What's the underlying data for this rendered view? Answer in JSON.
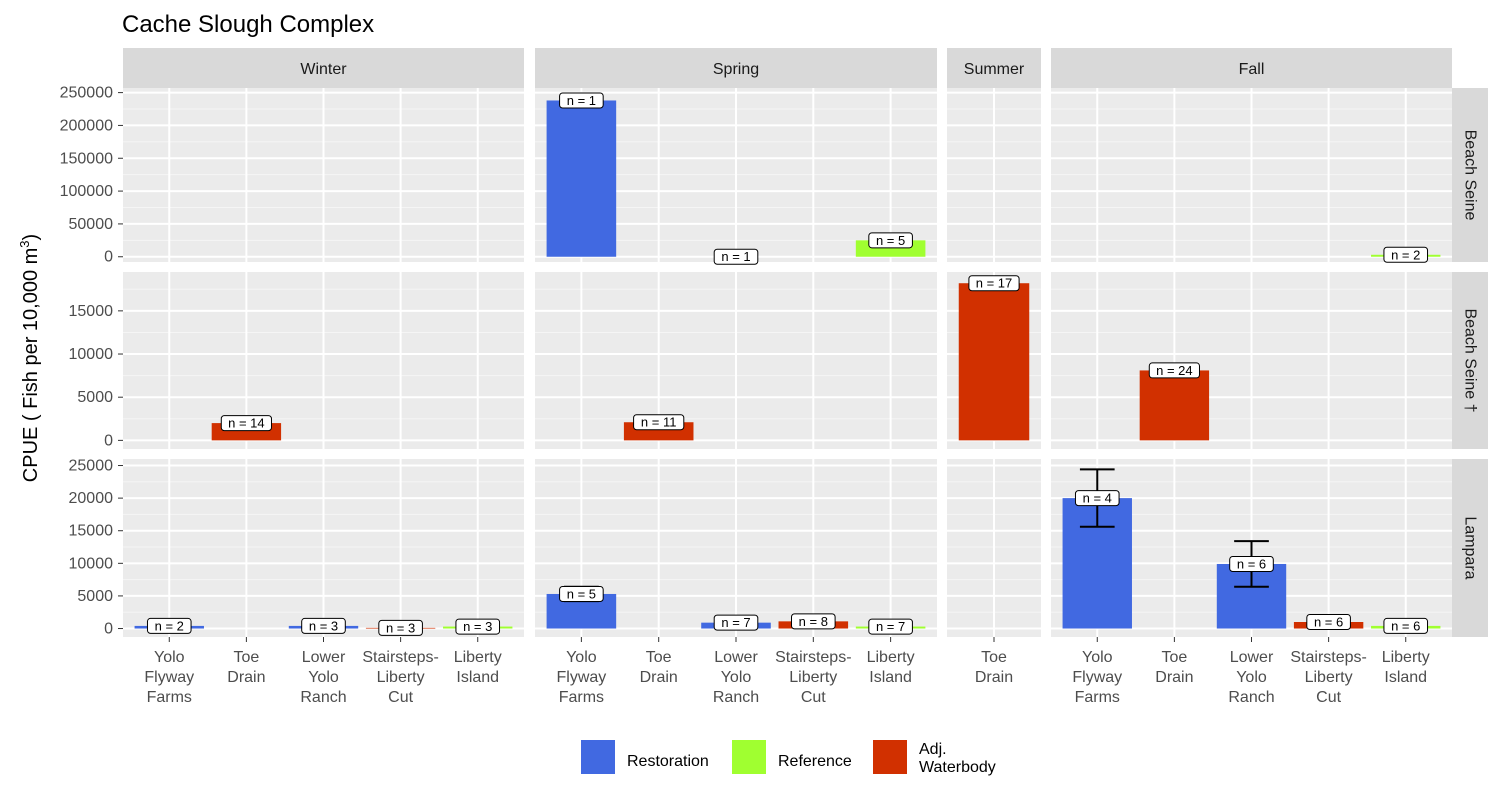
{
  "chart_data": {
    "type": "bar",
    "title": "Cache Slough Complex",
    "ylabel": "CPUE ( Fish per 10,000 m",
    "ylabel_superscript": "3",
    "ylabel_close": ")",
    "columns": [
      {
        "name": "Winter",
        "categories": [
          "Yolo Flyway Farms",
          "Toe Drain",
          "Lower Yolo Ranch",
          "Stairsteps-Liberty Cut",
          "Liberty Island"
        ]
      },
      {
        "name": "Spring",
        "categories": [
          "Yolo Flyway Farms",
          "Toe Drain",
          "Lower Yolo Ranch",
          "Stairsteps-Liberty Cut",
          "Liberty Island"
        ]
      },
      {
        "name": "Summer",
        "categories": [
          "Toe Drain"
        ]
      },
      {
        "name": "Fall",
        "categories": [
          "Yolo Flyway Farms",
          "Toe Drain",
          "Lower Yolo Ranch",
          "Stairsteps-Liberty Cut",
          "Liberty Island"
        ]
      }
    ],
    "category_labels": {
      "Yolo Flyway Farms": [
        "Yolo",
        "Flyway",
        "Farms"
      ],
      "Toe Drain": [
        "Toe",
        "Drain"
      ],
      "Lower Yolo Ranch": [
        "Lower",
        "Yolo",
        "Ranch"
      ],
      "Stairsteps-Liberty Cut": [
        "Stairsteps-",
        "Liberty",
        "Cut"
      ],
      "Liberty Island": [
        "Liberty",
        "Island"
      ]
    },
    "rows": [
      {
        "name": "Beach Seine",
        "ylim": [
          -8000,
          257000
        ],
        "yticks": [
          0,
          50000,
          100000,
          150000,
          200000,
          250000
        ]
      },
      {
        "name": "Beach Seine †",
        "ylim": [
          -1000,
          19500
        ],
        "yticks": [
          0,
          5000,
          10000,
          15000
        ]
      },
      {
        "name": "Lampara",
        "ylim": [
          -1300,
          26000
        ],
        "yticks": [
          0,
          5000,
          10000,
          15000,
          20000,
          25000
        ]
      }
    ],
    "legend": {
      "position": "bottom",
      "entries": [
        {
          "name": "Restoration",
          "lines": [
            "Restoration"
          ],
          "color": "#4169E1"
        },
        {
          "name": "Reference",
          "lines": [
            "Reference"
          ],
          "color": "#A0FF30"
        },
        {
          "name": "Adj. Waterbody",
          "lines": [
            "Adj.",
            "Waterbody"
          ],
          "color": "#D13000"
        }
      ]
    },
    "bars": [
      {
        "row": 0,
        "col": 1,
        "cat": "Yolo Flyway Farms",
        "type": "Restoration",
        "value": 238000,
        "n": "n =  1"
      },
      {
        "row": 0,
        "col": 1,
        "cat": "Lower Yolo Ranch",
        "type": "Restoration",
        "value": 0,
        "n": "n =  1"
      },
      {
        "row": 0,
        "col": 1,
        "cat": "Liberty Island",
        "type": "Reference",
        "value": 25000,
        "err": [
          16000,
          35000
        ],
        "n": "n =  5"
      },
      {
        "row": 0,
        "col": 3,
        "cat": "Liberty Island",
        "type": "Reference",
        "value": 3000,
        "err": [
          1500,
          4500
        ],
        "n": "n =  2"
      },
      {
        "row": 1,
        "col": 0,
        "cat": "Toe Drain",
        "type": "Adj. Waterbody",
        "value": 2000,
        "n": "n =  14"
      },
      {
        "row": 1,
        "col": 1,
        "cat": "Toe Drain",
        "type": "Adj. Waterbody",
        "value": 2100,
        "n": "n =  11"
      },
      {
        "row": 1,
        "col": 2,
        "cat": "Toe Drain",
        "type": "Adj. Waterbody",
        "value": 18200,
        "n": "n =  17"
      },
      {
        "row": 1,
        "col": 3,
        "cat": "Toe Drain",
        "type": "Adj. Waterbody",
        "value": 8100,
        "n": "n =  24"
      },
      {
        "row": 2,
        "col": 0,
        "cat": "Yolo Flyway Farms",
        "type": "Restoration",
        "value": 400,
        "err": [
          100,
          800
        ],
        "n": "n =  2"
      },
      {
        "row": 2,
        "col": 0,
        "cat": "Lower Yolo Ranch",
        "type": "Restoration",
        "value": 400,
        "err": [
          200,
          700
        ],
        "n": "n =  3"
      },
      {
        "row": 2,
        "col": 0,
        "cat": "Stairsteps-Liberty Cut",
        "type": "Adj. Waterbody",
        "value": 100,
        "err": [
          0,
          250
        ],
        "n": "n =  3"
      },
      {
        "row": 2,
        "col": 0,
        "cat": "Liberty Island",
        "type": "Reference",
        "value": 300,
        "err": [
          100,
          500
        ],
        "n": "n =  3"
      },
      {
        "row": 2,
        "col": 1,
        "cat": "Yolo Flyway Farms",
        "type": "Restoration",
        "value": 5300,
        "err": [
          4200,
          6400
        ],
        "n": "n =  5"
      },
      {
        "row": 2,
        "col": 1,
        "cat": "Lower Yolo Ranch",
        "type": "Restoration",
        "value": 900,
        "err": [
          600,
          1200
        ],
        "n": "n =  7"
      },
      {
        "row": 2,
        "col": 1,
        "cat": "Stairsteps-Liberty Cut",
        "type": "Adj. Waterbody",
        "value": 1100,
        "err": [
          800,
          1500
        ],
        "n": "n =  8"
      },
      {
        "row": 2,
        "col": 1,
        "cat": "Liberty Island",
        "type": "Reference",
        "value": 300,
        "err": [
          100,
          500
        ],
        "n": "n =  7"
      },
      {
        "row": 2,
        "col": 3,
        "cat": "Yolo Flyway Farms",
        "type": "Restoration",
        "value": 20000,
        "err": [
          15600,
          24400
        ],
        "n": "n =  4"
      },
      {
        "row": 2,
        "col": 3,
        "cat": "Lower Yolo Ranch",
        "type": "Restoration",
        "value": 9900,
        "err": [
          6400,
          13400
        ],
        "n": "n =  6"
      },
      {
        "row": 2,
        "col": 3,
        "cat": "Stairsteps-Liberty Cut",
        "type": "Adj. Waterbody",
        "value": 1000,
        "err": [
          700,
          1400
        ],
        "n": "n =  6"
      },
      {
        "row": 2,
        "col": 3,
        "cat": "Liberty Island",
        "type": "Reference",
        "value": 400,
        "err": [
          200,
          700
        ],
        "n": "n =  6"
      }
    ]
  }
}
